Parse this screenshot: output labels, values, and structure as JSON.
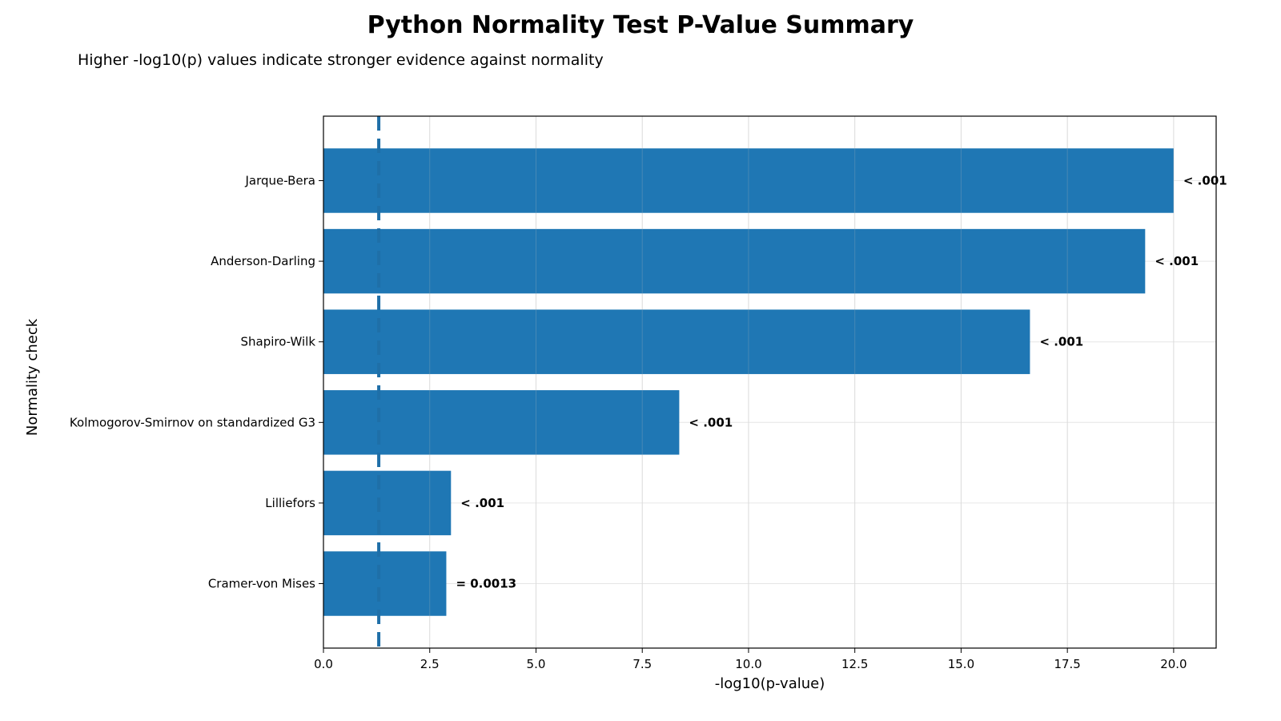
{
  "chart_data": {
    "type": "bar",
    "orientation": "horizontal",
    "title": "Python Normality Test P-Value Summary",
    "subtitle": "Higher -log10(p) values indicate stronger evidence against normality",
    "xlabel": "-log10(p-value)",
    "ylabel": "Normality check",
    "xlim": [
      0,
      21
    ],
    "xticks": [
      0.0,
      2.5,
      5.0,
      7.5,
      10.0,
      12.5,
      15.0,
      17.5,
      20.0
    ],
    "xtick_labels": [
      "0.0",
      "2.5",
      "5.0",
      "7.5",
      "10.0",
      "12.5",
      "15.0",
      "17.5",
      "20.0"
    ],
    "grid": true,
    "reference_line": {
      "x": 1.301,
      "style": "dashed"
    },
    "bar_color": "#1f77b4",
    "categories": [
      "Jarque-Bera",
      "Anderson-Darling",
      "Shapiro-Wilk",
      "Kolmogorov-Smirnov on standardized G3",
      "Lilliefors",
      "Cramer-von Mises"
    ],
    "values": [
      20.0,
      19.33,
      16.62,
      8.37,
      3.0,
      2.89
    ],
    "data_labels": [
      "< .001",
      "< .001",
      "< .001",
      "< .001",
      "< .001",
      "= 0.0013"
    ]
  }
}
